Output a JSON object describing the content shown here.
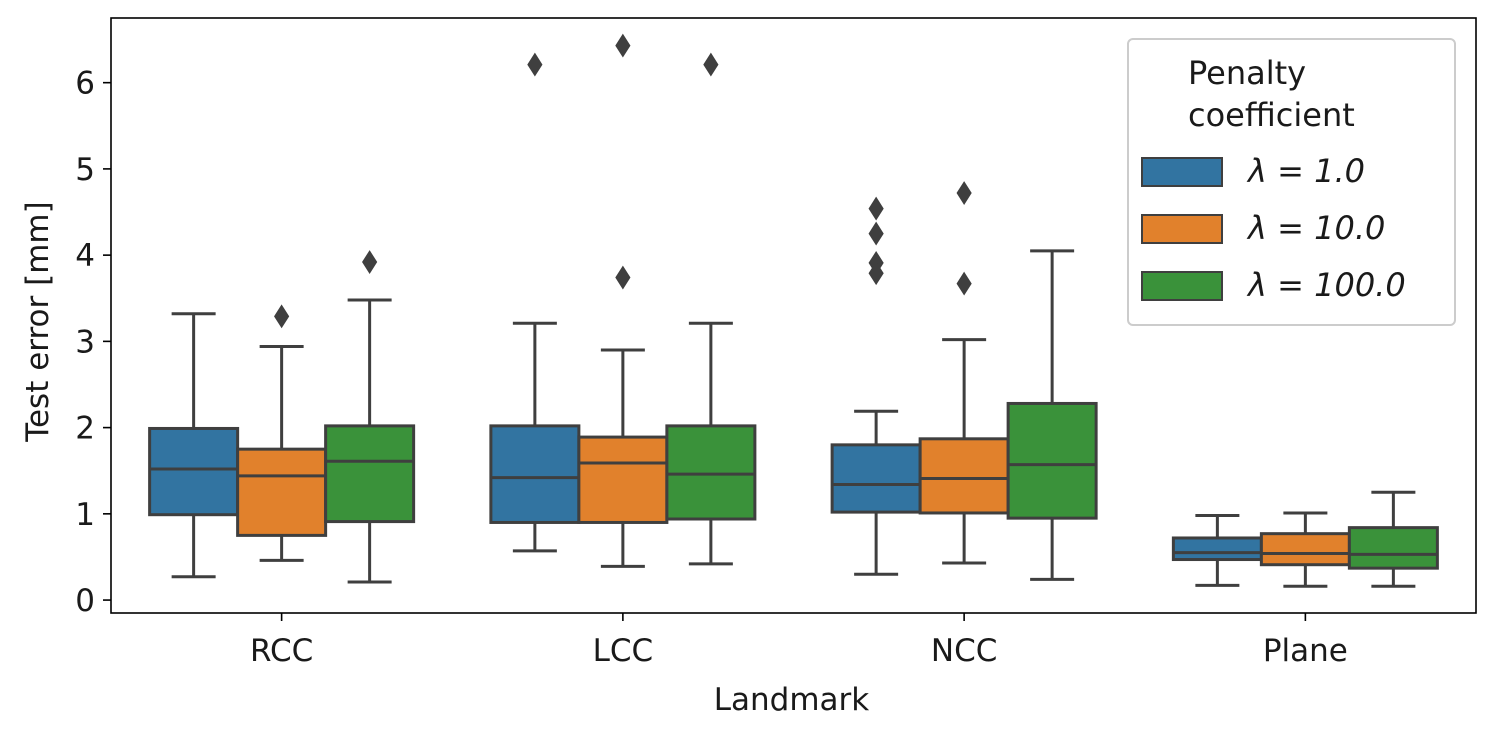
{
  "chart_data": {
    "type": "box",
    "title": "",
    "xlabel": "Landmark",
    "ylabel": "Test error [mm]",
    "ylim": [
      -0.15,
      6.75
    ],
    "yticks": [
      0,
      1,
      2,
      3,
      4,
      5,
      6
    ],
    "categories": [
      "RCC",
      "LCC",
      "NCC",
      "Plane"
    ],
    "legend": {
      "title_lines": [
        "Penalty",
        "coefficient"
      ],
      "placement": "top-right"
    },
    "series": [
      {
        "name": "λ = 1.0",
        "color": "#3274a1",
        "boxes": [
          {
            "category": "RCC",
            "whisker_low": 0.27,
            "q1": 0.99,
            "median": 1.52,
            "q3": 1.99,
            "whisker_high": 3.32,
            "outliers": []
          },
          {
            "category": "LCC",
            "whisker_low": 0.57,
            "q1": 0.9,
            "median": 1.42,
            "q3": 2.02,
            "whisker_high": 3.21,
            "outliers": [
              6.21
            ]
          },
          {
            "category": "NCC",
            "whisker_low": 0.3,
            "q1": 1.02,
            "median": 1.34,
            "q3": 1.8,
            "whisker_high": 2.19,
            "outliers": [
              4.54,
              4.25,
              3.91,
              3.79
            ]
          },
          {
            "category": "Plane",
            "whisker_low": 0.17,
            "q1": 0.47,
            "median": 0.55,
            "q3": 0.72,
            "whisker_high": 0.98,
            "outliers": []
          }
        ]
      },
      {
        "name": "λ = 10.0",
        "color": "#e1812c",
        "boxes": [
          {
            "category": "RCC",
            "whisker_low": 0.46,
            "q1": 0.75,
            "median": 1.44,
            "q3": 1.75,
            "whisker_high": 2.94,
            "outliers": [
              3.29
            ]
          },
          {
            "category": "LCC",
            "whisker_low": 0.39,
            "q1": 0.9,
            "median": 1.59,
            "q3": 1.89,
            "whisker_high": 2.9,
            "outliers": [
              6.43,
              3.74
            ]
          },
          {
            "category": "NCC",
            "whisker_low": 0.43,
            "q1": 1.01,
            "median": 1.41,
            "q3": 1.87,
            "whisker_high": 3.02,
            "outliers": [
              4.72,
              3.67
            ]
          },
          {
            "category": "Plane",
            "whisker_low": 0.16,
            "q1": 0.41,
            "median": 0.54,
            "q3": 0.77,
            "whisker_high": 1.01,
            "outliers": []
          }
        ]
      },
      {
        "name": "λ = 100.0",
        "color": "#3a923a",
        "boxes": [
          {
            "category": "RCC",
            "whisker_low": 0.21,
            "q1": 0.91,
            "median": 1.61,
            "q3": 2.02,
            "whisker_high": 3.48,
            "outliers": [
              3.92
            ]
          },
          {
            "category": "LCC",
            "whisker_low": 0.42,
            "q1": 0.94,
            "median": 1.46,
            "q3": 2.02,
            "whisker_high": 3.21,
            "outliers": [
              6.21
            ]
          },
          {
            "category": "NCC",
            "whisker_low": 0.24,
            "q1": 0.95,
            "median": 1.57,
            "q3": 2.28,
            "whisker_high": 4.05,
            "outliers": []
          },
          {
            "category": "Plane",
            "whisker_low": 0.16,
            "q1": 0.37,
            "median": 0.53,
            "q3": 0.84,
            "whisker_high": 1.25,
            "outliers": []
          }
        ]
      }
    ]
  }
}
